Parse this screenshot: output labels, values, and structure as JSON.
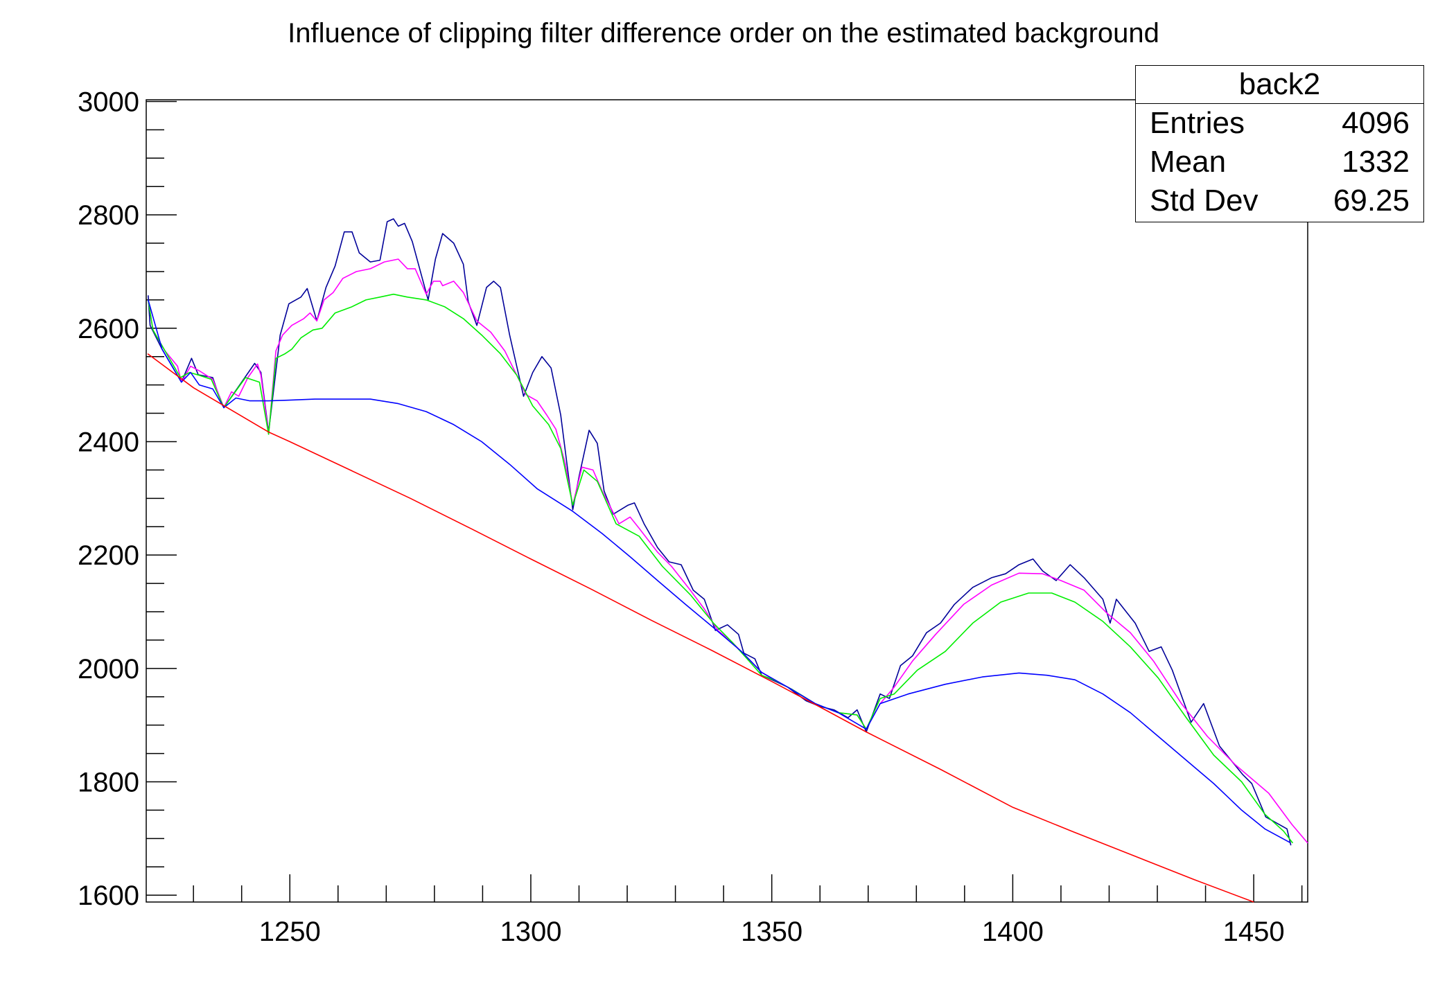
{
  "chart_data": {
    "type": "line",
    "title": "Influence of clipping filter difference order on the estimated background",
    "xlabel": "",
    "ylabel": "",
    "xlim": [
      1220.2,
      1461.2
    ],
    "ylim": [
      1588,
      3003
    ],
    "x_ticks": [
      1250,
      1300,
      1350,
      1400,
      1450
    ],
    "y_ticks": [
      1600,
      1800,
      2000,
      2200,
      2400,
      2600,
      2800,
      3000
    ],
    "grid": false,
    "legend": "none",
    "stats_box": {
      "name": "back2",
      "rows": [
        {
          "label": "Entries",
          "value": "4096"
        },
        {
          "label": "Mean",
          "value": "1332"
        },
        {
          "label": "Std Dev",
          "value": "69.25"
        }
      ]
    },
    "series": [
      {
        "color": "#000099",
        "x": [
          1220.6,
          1221,
          1223.5,
          1227.5,
          1229.6,
          1231,
          1234,
          1235,
          1236.3,
          1240,
          1242.7,
          1244,
          1245.6,
          1248,
          1249.8,
          1252.3,
          1253.6,
          1255.6,
          1257.5,
          1259.4,
          1261.3,
          1262.9,
          1264.4,
          1266.7,
          1268.7,
          1270.2,
          1271.5,
          1272.5,
          1273.8,
          1275.4,
          1278.7,
          1280.2,
          1281.7,
          1284,
          1286,
          1287,
          1288.8,
          1290.8,
          1292.3,
          1293.7,
          1295.6,
          1298.5,
          1300.4,
          1302.3,
          1304.2,
          1306.2,
          1308.7,
          1310,
          1312.1,
          1313.8,
          1315.2,
          1317.1,
          1320.2,
          1321.5,
          1323.5,
          1326.3,
          1328.7,
          1331.2,
          1333.7,
          1336,
          1338.3,
          1340.8,
          1343.1,
          1344.2,
          1346.5,
          1347.9,
          1350,
          1353.3,
          1357.1,
          1360,
          1362.9,
          1365.8,
          1367.7,
          1369.6,
          1372.5,
          1374.4,
          1376.7,
          1379.2,
          1382.1,
          1385,
          1387.9,
          1391.7,
          1395.6,
          1398.5,
          1401.3,
          1404.2,
          1406.2,
          1409,
          1411.9,
          1414.8,
          1418.7,
          1420.2,
          1421.5,
          1425.4,
          1428.3,
          1430.8,
          1433.1,
          1437,
          1439.6,
          1442.9,
          1447.7,
          1449.6,
          1452.5,
          1456.9,
          1457.7
        ],
        "y": [
          2658,
          2605,
          2563,
          2505,
          2547,
          2518,
          2513,
          2488,
          2460,
          2505,
          2538,
          2522,
          2417,
          2588,
          2643,
          2655,
          2670,
          2613,
          2672,
          2710,
          2770,
          2770,
          2733,
          2717,
          2720,
          2788,
          2793,
          2780,
          2785,
          2753,
          2650,
          2722,
          2767,
          2750,
          2713,
          2647,
          2605,
          2672,
          2683,
          2672,
          2588,
          2480,
          2522,
          2550,
          2530,
          2447,
          2280,
          2338,
          2420,
          2397,
          2313,
          2272,
          2288,
          2292,
          2255,
          2213,
          2188,
          2183,
          2138,
          2122,
          2067,
          2077,
          2060,
          2027,
          2017,
          1988,
          1980,
          1967,
          1943,
          1933,
          1927,
          1913,
          1927,
          1888,
          1955,
          1947,
          2005,
          2022,
          2063,
          2080,
          2113,
          2143,
          2160,
          2167,
          2183,
          2193,
          2172,
          2155,
          2183,
          2160,
          2122,
          2080,
          2122,
          2080,
          2030,
          2038,
          1997,
          1905,
          1938,
          1863,
          1813,
          1797,
          1738,
          1717,
          1688
        ]
      },
      {
        "color": "#ff00ff",
        "x": [
          1220.6,
          1221.6,
          1224.1,
          1226.7,
          1227.5,
          1229.4,
          1231.2,
          1234,
          1236.3,
          1237.9,
          1239.4,
          1241.3,
          1243.3,
          1244,
          1245.6,
          1247.1,
          1248.5,
          1250.4,
          1252.9,
          1254.2,
          1255.6,
          1257.1,
          1259,
          1261,
          1263.8,
          1266.7,
          1269.6,
          1272.5,
          1274.4,
          1276,
          1278.3,
          1279.8,
          1281.2,
          1281.7,
          1284,
          1286,
          1288.8,
          1291.7,
          1294.6,
          1297.1,
          1299,
          1301.3,
          1303.3,
          1305.2,
          1307.1,
          1308.7,
          1310.6,
          1312.9,
          1314.8,
          1318.3,
          1320.6,
          1322.5,
          1326.3,
          1329.2,
          1333.1,
          1336,
          1338.8,
          1341.7,
          1344.2,
          1347.9,
          1350.4,
          1354.2,
          1359,
          1363.8,
          1367.7,
          1369.6,
          1372.5,
          1375.4,
          1379.2,
          1384,
          1389.8,
          1395.6,
          1401.3,
          1406.2,
          1410,
          1414.8,
          1419.6,
          1424.4,
          1429.2,
          1435,
          1440.4,
          1446.2,
          1453.1,
          1457.9,
          1461.2
        ],
        "y": [
          2650,
          2597,
          2560,
          2533,
          2505,
          2533,
          2525,
          2510,
          2460,
          2488,
          2480,
          2513,
          2537,
          2517,
          2413,
          2560,
          2588,
          2605,
          2617,
          2627,
          2613,
          2650,
          2663,
          2688,
          2700,
          2705,
          2717,
          2722,
          2705,
          2705,
          2660,
          2683,
          2683,
          2675,
          2683,
          2663,
          2613,
          2593,
          2560,
          2517,
          2483,
          2472,
          2447,
          2422,
          2363,
          2288,
          2355,
          2350,
          2313,
          2255,
          2267,
          2247,
          2205,
          2180,
          2138,
          2105,
          2067,
          2047,
          2025,
          1993,
          1980,
          1963,
          1938,
          1922,
          1918,
          1893,
          1938,
          1967,
          2013,
          2060,
          2113,
          2147,
          2168,
          2167,
          2155,
          2138,
          2097,
          2063,
          2013,
          1938,
          1880,
          1830,
          1780,
          1725,
          1692
        ]
      },
      {
        "color": "#00ee00",
        "x": [
          1220.6,
          1221.6,
          1227.3,
          1229.2,
          1231.2,
          1233.7,
          1236.3,
          1240.8,
          1243.7,
          1245.6,
          1247.1,
          1249,
          1250.4,
          1252.3,
          1254.8,
          1256.7,
          1259.4,
          1262.9,
          1265.8,
          1268.7,
          1271.5,
          1274.4,
          1278.3,
          1282.1,
          1286,
          1289.8,
          1293.7,
          1297.1,
          1300.4,
          1303.7,
          1306.2,
          1308.7,
          1311,
          1313.8,
          1317.7,
          1322.5,
          1327.3,
          1333.1,
          1337.9,
          1341.7,
          1345.6,
          1347.9,
          1350.4,
          1354.2,
          1359,
          1363.8,
          1367.7,
          1369.6,
          1372.5,
          1375.4,
          1380.2,
          1386,
          1391.7,
          1397.5,
          1403.3,
          1408.1,
          1412.9,
          1418.7,
          1424.4,
          1430.2,
          1436,
          1441.7,
          1447.5,
          1452.3,
          1456.2,
          1458.1
        ],
        "y": [
          2650,
          2597,
          2513,
          2522,
          2517,
          2510,
          2460,
          2513,
          2505,
          2413,
          2547,
          2555,
          2563,
          2583,
          2597,
          2600,
          2627,
          2638,
          2650,
          2655,
          2660,
          2655,
          2650,
          2638,
          2617,
          2588,
          2555,
          2517,
          2463,
          2430,
          2388,
          2288,
          2350,
          2330,
          2255,
          2233,
          2180,
          2130,
          2080,
          2047,
          2010,
          1988,
          1980,
          1963,
          1938,
          1922,
          1918,
          1893,
          1947,
          1955,
          1997,
          2030,
          2080,
          2117,
          2133,
          2133,
          2117,
          2083,
          2038,
          1983,
          1913,
          1847,
          1800,
          1743,
          1713,
          1692
        ]
      },
      {
        "color": "#0000ff",
        "x": [
          1220.6,
          1223.5,
          1227.5,
          1229.4,
          1231.2,
          1234,
          1236.3,
          1238.8,
          1241.7,
          1245.6,
          1249.4,
          1255.2,
          1266.7,
          1272.5,
          1278.3,
          1284,
          1289.8,
          1295.6,
          1301.3,
          1308.7,
          1314.8,
          1320.6,
          1326.3,
          1332.1,
          1337.9,
          1343.7,
          1347.9,
          1353.3,
          1359,
          1363.8,
          1369.6,
          1372.5,
          1378.3,
          1386,
          1393.7,
          1401.3,
          1407.1,
          1412.9,
          1418.7,
          1424.4,
          1430.2,
          1436,
          1441.7,
          1447.5,
          1452.3,
          1457.5
        ],
        "y": [
          2650,
          2563,
          2505,
          2522,
          2500,
          2493,
          2460,
          2477,
          2472,
          2472,
          2473,
          2475,
          2475,
          2467,
          2453,
          2430,
          2400,
          2360,
          2317,
          2277,
          2238,
          2197,
          2155,
          2113,
          2072,
          2030,
          1993,
          1967,
          1938,
          1922,
          1893,
          1938,
          1955,
          1972,
          1985,
          1992,
          1988,
          1980,
          1955,
          1922,
          1880,
          1838,
          1797,
          1750,
          1717,
          1693
        ]
      },
      {
        "color": "#ff0000",
        "x": [
          1220.5,
          1230,
          1245.6,
          1250,
          1262.5,
          1275,
          1287.5,
          1300,
          1312.5,
          1325,
          1337.5,
          1350,
          1360,
          1369.6,
          1385,
          1400,
          1412.5,
          1425,
          1437.5,
          1450
        ],
        "y": [
          2555,
          2495,
          2417,
          2400,
          2350,
          2300,
          2247,
          2193,
          2140,
          2085,
          2032,
          1977,
          1932,
          1888,
          1822,
          1755,
          1712,
          1670,
          1628,
          1588
        ]
      }
    ]
  }
}
